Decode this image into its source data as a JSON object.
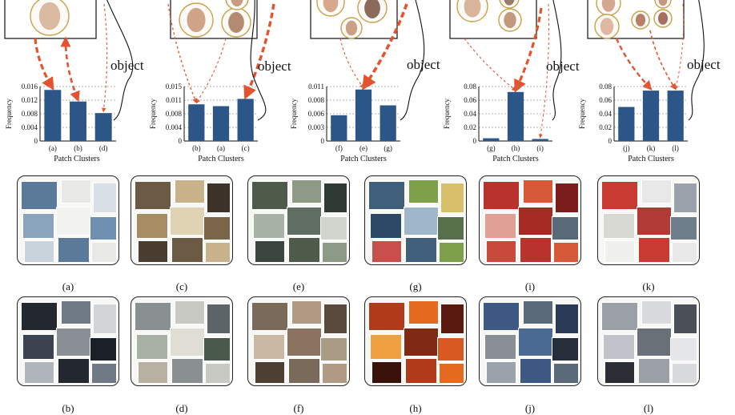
{
  "figure": {
    "object_label": "object",
    "x_axis_label": "Patch Clusters",
    "y_axis_label": "Frequency"
  },
  "chart_data": [
    {
      "type": "bar",
      "categories": [
        "(a)",
        "(b)",
        "(d)"
      ],
      "values": [
        0.015,
        0.0116,
        0.0082
      ],
      "xlabel": "Patch Clusters",
      "ylabel": "Frequency",
      "ylim": [
        0,
        0.016
      ],
      "yticks": [
        "0",
        "0.004",
        "0.008",
        "0.012",
        "0.016"
      ],
      "grid": true,
      "color": "#2d5688"
    },
    {
      "type": "bar",
      "categories": [
        "(b)",
        "(a)",
        "(c)"
      ],
      "values": [
        0.0101,
        0.0096,
        0.0116
      ],
      "xlabel": "Patch Clusters",
      "ylabel": "Frequency",
      "ylim": [
        0,
        0.015
      ],
      "yticks": [
        "0",
        "0.004",
        "0.008",
        "0.011",
        "0.015"
      ],
      "grid": true,
      "color": "#2d5688"
    },
    {
      "type": "bar",
      "categories": [
        "(f)",
        "(e)",
        "(g)"
      ],
      "values": [
        0.0052,
        0.0104,
        0.0072
      ],
      "xlabel": "Patch Clusters",
      "ylabel": "Frequency",
      "ylim": [
        0,
        0.011
      ],
      "yticks": [
        "0",
        "0.003",
        "0.006",
        "0.008",
        "0.011"
      ],
      "grid": true,
      "color": "#2d5688"
    },
    {
      "type": "bar",
      "categories": [
        "(g)",
        "(h)",
        "(i)"
      ],
      "values": [
        0.004,
        0.072,
        0.003
      ],
      "xlabel": "Patch Clusters",
      "ylabel": "Frequency",
      "ylim": [
        0,
        0.08
      ],
      "yticks": [
        "0",
        "0.02",
        "0.04",
        "0.06",
        "0.08"
      ],
      "grid": true,
      "color": "#2d5688"
    },
    {
      "type": "bar",
      "categories": [
        "(j)",
        "(k)",
        "(l)"
      ],
      "values": [
        0.05,
        0.074,
        0.074
      ],
      "xlabel": "Patch Clusters",
      "ylabel": "Frequency",
      "ylim": [
        0,
        0.08
      ],
      "yticks": [
        "0",
        "0.02",
        "0.04",
        "0.06",
        "0.08"
      ],
      "grid": true,
      "color": "#2d5688"
    }
  ],
  "collage_labels": {
    "row1": [
      "(a)",
      "(c)",
      "(e)",
      "(g)",
      "(i)",
      "(k)"
    ],
    "row2": [
      "(b)",
      "(d)",
      "(f)",
      "(h)",
      "(j)",
      "(l)"
    ]
  },
  "colors": {
    "bar": "#2d5688",
    "arrow": "#e5532e",
    "circle": "#c8a24a"
  }
}
